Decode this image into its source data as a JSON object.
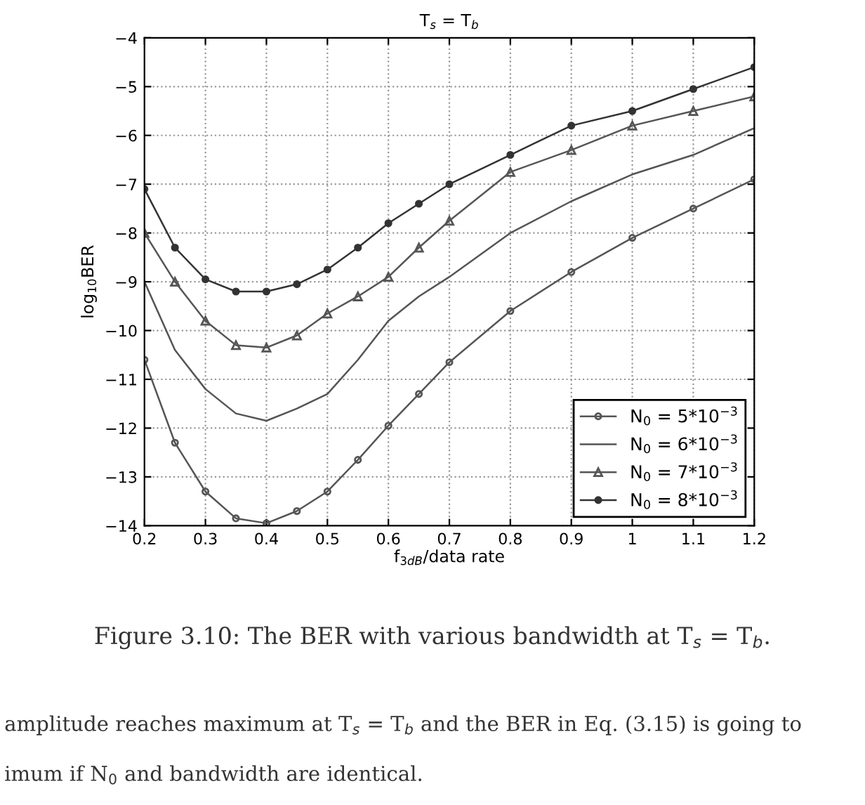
{
  "chart_data": {
    "type": "line",
    "title": "T$_{s}$ = T$_{b}$",
    "xlabel": "f$_{3dB}$/data rate",
    "ylabel": "log$_{10}$BER",
    "x": [
      0.2,
      0.25,
      0.3,
      0.35,
      0.4,
      0.45,
      0.5,
      0.55,
      0.6,
      0.65,
      0.7,
      0.8,
      0.9,
      1.0,
      1.1,
      1.2
    ],
    "series": [
      {
        "name": "N$_{0}$ = 5*10$^{−3}$",
        "color": "#555555",
        "marker": "circle",
        "values": [
          -10.6,
          -12.3,
          -13.3,
          -13.85,
          -13.95,
          -13.7,
          -13.3,
          -12.65,
          -11.95,
          -11.3,
          -10.65,
          -9.6,
          -8.8,
          -8.1,
          -7.5,
          -6.9
        ]
      },
      {
        "name": "N$_{0}$ = 6*10$^{−3}$",
        "color": "#555555",
        "marker": "none",
        "values": [
          -9.0,
          -10.4,
          -11.2,
          -11.7,
          -11.85,
          -11.6,
          -11.3,
          -10.6,
          -9.8,
          -9.3,
          -8.9,
          -8.0,
          -7.35,
          -6.8,
          -6.4,
          -5.85
        ]
      },
      {
        "name": "N$_{0}$ = 7*10$^{−3}$",
        "color": "#555555",
        "marker": "triangle",
        "values": [
          -8.0,
          -9.0,
          -9.8,
          -10.3,
          -10.35,
          -10.1,
          -9.65,
          -9.3,
          -8.9,
          -8.3,
          -7.75,
          -6.75,
          -6.3,
          -5.8,
          -5.5,
          -5.2
        ]
      },
      {
        "name": "N$_{0}$ = 8*10$^{−3}$",
        "color": "#333333",
        "marker": "dot",
        "values": [
          -7.1,
          -8.3,
          -8.95,
          -9.2,
          -9.2,
          -9.05,
          -8.75,
          -8.3,
          -7.8,
          -7.4,
          -7.0,
          -6.4,
          -5.8,
          -5.5,
          -5.05,
          -4.6
        ]
      }
    ],
    "xlim": [
      0.2,
      1.2
    ],
    "ylim": [
      -14,
      -4
    ],
    "xticks": [
      0.2,
      0.3,
      0.4,
      0.5,
      0.6,
      0.7,
      0.8,
      0.9,
      1,
      1.1,
      1.2
    ],
    "yticks": [
      {
        "value": -14,
        "label": "−14"
      },
      {
        "value": -13,
        "label": "−13"
      },
      {
        "value": -12,
        "label": "−12"
      },
      {
        "value": -11,
        "label": "−11"
      },
      {
        "value": -10,
        "label": "−10"
      },
      {
        "value": -9,
        "label": "−9"
      },
      {
        "value": -8,
        "label": "−8"
      },
      {
        "value": -7,
        "label": "−7"
      },
      {
        "value": -6,
        "label": "−6"
      },
      {
        "value": -5,
        "label": "−5"
      },
      {
        "value": -4,
        "label": "−4"
      }
    ],
    "grid": true,
    "legend": "bottom right",
    "line_style": "solid",
    "annotations": [
      "Figure 3.10: The BER with various bandwidth at T$_{s}$ = T$_{b}$.",
      "amplitude reaches maximum at T$_{s}$ = T$_{b}$ and the BER in Eq. (3.15) is going to",
      "imum if N$_{0}$ and bandwidth are identical."
    ]
  }
}
